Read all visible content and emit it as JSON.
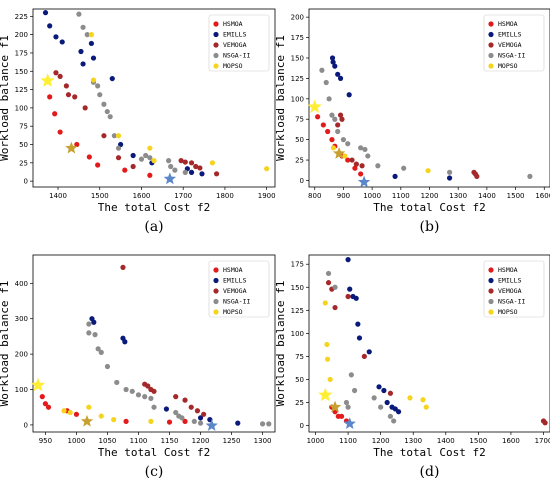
{
  "series_styles": [
    {
      "name": "HSMOA",
      "color": "#e31a1c"
    },
    {
      "name": "EMILLS",
      "color": "#0a1a7a"
    },
    {
      "name": "VEMOGA",
      "color": "#a5282a"
    },
    {
      "name": "NSGA-II",
      "color": "#8c8c8c"
    },
    {
      "name": "MOPSO",
      "color": "#f5d41e"
    }
  ],
  "star_colors": {
    "HSMOA": "#5b86c9",
    "MOPSO": "#ffee33",
    "VEMOGA": "#c8a030"
  },
  "chart_data": [
    {
      "type": "scatter",
      "caption": "(a)",
      "xlabel": "The total Cost f2",
      "ylabel": "Workload balance f1",
      "xlim": [
        1340,
        1920
      ],
      "ylim": [
        -8,
        235
      ],
      "xticks": [
        1400,
        1500,
        1600,
        1700,
        1800,
        1900
      ],
      "yticks": [
        0,
        25,
        50,
        75,
        100,
        125,
        150,
        175,
        200,
        225
      ],
      "legend": [
        "HSMOA",
        "EMILLS",
        "VEMOGA",
        "NSGA-II",
        "MOPSO"
      ],
      "legend_position": "top-right",
      "series": [
        {
          "name": "HSMOA",
          "points": [
            [
              1380,
              115
            ],
            [
              1392,
              92
            ],
            [
              1405,
              67
            ],
            [
              1445,
              50
            ],
            [
              1475,
              33
            ],
            [
              1495,
              22
            ],
            [
              1560,
              15
            ],
            [
              1620,
              8
            ]
          ]
        },
        {
          "name": "EMILLS",
          "points": [
            [
              1370,
              230
            ],
            [
              1380,
              212
            ],
            [
              1395,
              197
            ],
            [
              1410,
              190
            ],
            [
              1455,
              177
            ],
            [
              1460,
              160
            ],
            [
              1480,
              188
            ],
            [
              1485,
              168
            ],
            [
              1530,
              140
            ],
            [
              1550,
              50
            ],
            [
              1580,
              35
            ],
            [
              1625,
              25
            ],
            [
              1710,
              17
            ],
            [
              1720,
              12
            ],
            [
              1745,
              10
            ]
          ]
        },
        {
          "name": "VEMOGA",
          "points": [
            [
              1395,
              148
            ],
            [
              1405,
              143
            ],
            [
              1420,
              130
            ],
            [
              1425,
              118
            ],
            [
              1440,
              115
            ],
            [
              1465,
              100
            ],
            [
              1510,
              62
            ],
            [
              1545,
              32
            ],
            [
              1580,
              20
            ],
            [
              1695,
              28
            ],
            [
              1705,
              26
            ],
            [
              1720,
              25
            ],
            [
              1730,
              20
            ],
            [
              1740,
              18
            ],
            [
              1780,
              10
            ]
          ]
        },
        {
          "name": "NSGA-II",
          "points": [
            [
              1450,
              228
            ],
            [
              1460,
              210
            ],
            [
              1470,
              200
            ],
            [
              1485,
              135
            ],
            [
              1495,
              130
            ],
            [
              1500,
              118
            ],
            [
              1510,
              105
            ],
            [
              1518,
              95
            ],
            [
              1525,
              88
            ],
            [
              1535,
              62
            ],
            [
              1545,
              45
            ],
            [
              1600,
              30
            ],
            [
              1610,
              35
            ],
            [
              1620,
              32
            ],
            [
              1665,
              28
            ],
            [
              1670,
              20
            ],
            [
              1680,
              15
            ],
            [
              1705,
              12
            ]
          ]
        },
        {
          "name": "MOPSO",
          "points": [
            [
              1480,
              200
            ],
            [
              1485,
              138
            ],
            [
              1545,
              62
            ],
            [
              1620,
              45
            ],
            [
              1630,
              28
            ],
            [
              1770,
              25
            ],
            [
              1900,
              17
            ]
          ]
        }
      ],
      "stars": [
        {
          "name": "MOPSO",
          "point": [
            1375,
            137
          ]
        },
        {
          "name": "VEMOGA",
          "point": [
            1432,
            45
          ]
        },
        {
          "name": "HSMOA",
          "point": [
            1668,
            3
          ]
        }
      ]
    },
    {
      "type": "scatter",
      "caption": "(b)",
      "xlabel": "The total Cost f2",
      "ylabel": "Workload balance f1",
      "xlim": [
        780,
        1620
      ],
      "ylim": [
        -8,
        210
      ],
      "xticks": [
        800,
        900,
        1000,
        1100,
        1200,
        1300,
        1400,
        1500,
        1600
      ],
      "yticks": [
        0,
        25,
        50,
        75,
        100,
        125,
        150,
        175,
        200
      ],
      "legend": [
        "HSMOA",
        "EMILLS",
        "VEMOGA",
        "NSGA-II",
        "MOPSO"
      ],
      "legend_position": "top-right",
      "series": [
        {
          "name": "HSMOA",
          "points": [
            [
              810,
              78
            ],
            [
              830,
              68
            ],
            [
              845,
              60
            ],
            [
              860,
              50
            ],
            [
              870,
              42
            ],
            [
              895,
              30
            ],
            [
              915,
              25
            ],
            [
              940,
              15
            ],
            [
              960,
              8
            ]
          ]
        },
        {
          "name": "EMILLS",
          "points": [
            [
              862,
              150
            ],
            [
              864,
              145
            ],
            [
              870,
              140
            ],
            [
              880,
              130
            ],
            [
              890,
              125
            ],
            [
              920,
              105
            ],
            [
              1080,
              5
            ],
            [
              1270,
              3
            ]
          ]
        },
        {
          "name": "VEMOGA",
          "points": [
            [
              880,
              68
            ],
            [
              890,
              80
            ],
            [
              895,
              75
            ],
            [
              930,
              25
            ],
            [
              945,
              20
            ],
            [
              965,
              18
            ],
            [
              1355,
              10
            ],
            [
              1360,
              8
            ],
            [
              1365,
              5
            ]
          ]
        },
        {
          "name": "NSGA-II",
          "points": [
            [
              825,
              135
            ],
            [
              840,
              120
            ],
            [
              850,
              100
            ],
            [
              860,
              80
            ],
            [
              870,
              75
            ],
            [
              880,
              60
            ],
            [
              900,
              50
            ],
            [
              915,
              45
            ],
            [
              960,
              40
            ],
            [
              975,
              38
            ],
            [
              985,
              30
            ],
            [
              1020,
              18
            ],
            [
              1110,
              15
            ],
            [
              1270,
              10
            ],
            [
              1550,
              5
            ]
          ]
        },
        {
          "name": "MOPSO",
          "points": [
            [
              865,
              40
            ],
            [
              905,
              30
            ],
            [
              1195,
              12
            ]
          ]
        }
      ],
      "stars": [
        {
          "name": "MOPSO",
          "point": [
            800,
            90
          ]
        },
        {
          "name": "VEMOGA",
          "point": [
            885,
            33
          ]
        },
        {
          "name": "HSMOA",
          "point": [
            972,
            -2
          ]
        }
      ]
    },
    {
      "type": "scatter",
      "caption": "(c)",
      "xlabel": "The total Cost f2",
      "ylabel": "Workload balance f1",
      "xlim": [
        930,
        1320
      ],
      "ylim": [
        -20,
        480
      ],
      "xticks": [
        950,
        1000,
        1050,
        1100,
        1150,
        1200,
        1250,
        1300
      ],
      "yticks": [
        0,
        100,
        200,
        300,
        400
      ],
      "legend": [
        "HSMOA",
        "EMILLS",
        "VEMOGA",
        "NSGA-II",
        "MOPSO"
      ],
      "legend_position": "top-right",
      "series": [
        {
          "name": "HSMOA",
          "points": [
            [
              945,
              80
            ],
            [
              950,
              60
            ],
            [
              955,
              50
            ],
            [
              985,
              40
            ],
            [
              1000,
              30
            ],
            [
              1080,
              10
            ],
            [
              1150,
              8
            ],
            [
              1175,
              10
            ]
          ]
        },
        {
          "name": "EMILLS",
          "points": [
            [
              1025,
              300
            ],
            [
              1028,
              290
            ],
            [
              1075,
              245
            ],
            [
              1078,
              235
            ],
            [
              1145,
              45
            ],
            [
              1200,
              20
            ],
            [
              1215,
              15
            ],
            [
              1260,
              5
            ]
          ]
        },
        {
          "name": "VEMOGA",
          "points": [
            [
              1075,
              445
            ],
            [
              1110,
              115
            ],
            [
              1115,
              110
            ],
            [
              1120,
              100
            ],
            [
              1125,
              95
            ],
            [
              1160,
              80
            ],
            [
              1175,
              70
            ],
            [
              1185,
              50
            ],
            [
              1195,
              40
            ],
            [
              1205,
              30
            ]
          ]
        },
        {
          "name": "NSGA-II",
          "points": [
            [
              1020,
              285
            ],
            [
              1020,
              260
            ],
            [
              1030,
              255
            ],
            [
              1035,
              215
            ],
            [
              1040,
              205
            ],
            [
              1050,
              165
            ],
            [
              1065,
              120
            ],
            [
              1080,
              100
            ],
            [
              1090,
              95
            ],
            [
              1100,
              85
            ],
            [
              1110,
              80
            ],
            [
              1120,
              75
            ],
            [
              1125,
              50
            ],
            [
              1160,
              35
            ],
            [
              1165,
              25
            ],
            [
              1170,
              20
            ],
            [
              1190,
              10
            ],
            [
              1200,
              5
            ],
            [
              1300,
              3
            ],
            [
              1310,
              3
            ]
          ]
        },
        {
          "name": "MOPSO",
          "points": [
            [
              980,
              40
            ],
            [
              990,
              35
            ],
            [
              1020,
              50
            ],
            [
              1040,
              25
            ],
            [
              1060,
              15
            ],
            [
              1120,
              10
            ]
          ]
        }
      ],
      "stars": [
        {
          "name": "MOPSO",
          "point": [
            938,
            112
          ]
        },
        {
          "name": "VEMOGA",
          "point": [
            1017,
            10
          ]
        },
        {
          "name": "HSMOA",
          "point": [
            1218,
            -2
          ]
        }
      ]
    },
    {
      "type": "scatter",
      "caption": "(d)",
      "xlabel": "The total Cost f2",
      "ylabel": "Workload balance f1",
      "xlim": [
        980,
        1720
      ],
      "ylim": [
        -7,
        185
      ],
      "xticks": [
        1000,
        1100,
        1200,
        1300,
        1400,
        1500,
        1600,
        1700
      ],
      "yticks": [
        0,
        25,
        50,
        75,
        100,
        125,
        150,
        175
      ],
      "legend": [
        "HSMOA",
        "EMILLS",
        "VEMOGA",
        "NSGA-II",
        "MOPSO"
      ],
      "legend_position": "top-right",
      "series": [
        {
          "name": "HSMOA",
          "points": [
            [
              1050,
              20
            ],
            [
              1060,
              15
            ],
            [
              1070,
              10
            ],
            [
              1080,
              10
            ],
            [
              1095,
              5
            ]
          ]
        },
        {
          "name": "EMILLS",
          "points": [
            [
              1100,
              180
            ],
            [
              1105,
              148
            ],
            [
              1115,
              140
            ],
            [
              1125,
              138
            ],
            [
              1130,
              110
            ],
            [
              1135,
              95
            ],
            [
              1165,
              80
            ],
            [
              1195,
              42
            ],
            [
              1210,
              38
            ],
            [
              1220,
              25
            ],
            [
              1235,
              20
            ],
            [
              1245,
              18
            ],
            [
              1255,
              15
            ]
          ]
        },
        {
          "name": "VEMOGA",
          "points": [
            [
              1040,
              155
            ],
            [
              1050,
              148
            ],
            [
              1060,
              128
            ],
            [
              1100,
              140
            ],
            [
              1150,
              75
            ],
            [
              1230,
              35
            ],
            [
              1700,
              5
            ],
            [
              1705,
              3
            ]
          ]
        },
        {
          "name": "NSGA-II",
          "points": [
            [
              1040,
              165
            ],
            [
              1060,
              150
            ],
            [
              1095,
              25
            ],
            [
              1100,
              20
            ],
            [
              1110,
              55
            ],
            [
              1120,
              38
            ],
            [
              1180,
              30
            ],
            [
              1200,
              20
            ],
            [
              1230,
              10
            ],
            [
              1240,
              5
            ]
          ]
        },
        {
          "name": "MOPSO",
          "points": [
            [
              1030,
              133
            ],
            [
              1035,
              88
            ],
            [
              1037,
              72
            ],
            [
              1045,
              50
            ],
            [
              1290,
              30
            ],
            [
              1330,
              28
            ],
            [
              1340,
              20
            ]
          ]
        }
      ],
      "stars": [
        {
          "name": "MOPSO",
          "point": [
            1030,
            33
          ]
        },
        {
          "name": "VEMOGA",
          "point": [
            1060,
            20
          ]
        },
        {
          "name": "HSMOA",
          "point": [
            1105,
            2
          ]
        }
      ]
    }
  ]
}
